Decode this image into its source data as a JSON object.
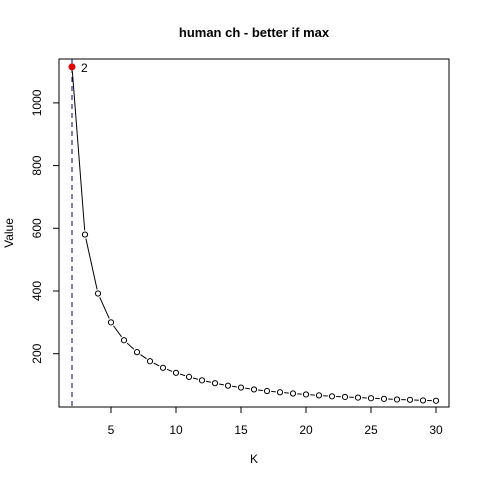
{
  "chart_data": {
    "type": "line",
    "title": "human ch - better if  max",
    "xlabel": "K",
    "ylabel": "Value",
    "xlim": [
      1,
      31
    ],
    "ylim": [
      30,
      1140
    ],
    "x_ticks": [
      5,
      10,
      15,
      20,
      25,
      30
    ],
    "y_ticks": [
      200,
      400,
      600,
      800,
      1000
    ],
    "grid": false,
    "legend": "none",
    "series": [
      {
        "x": [
          2,
          3,
          4,
          5,
          6,
          7,
          8,
          9,
          10,
          11,
          12,
          13,
          14,
          15,
          16,
          17,
          18,
          19,
          20,
          21,
          22,
          23,
          24,
          25,
          26,
          27,
          28,
          29,
          30
        ],
        "values": [
          1115,
          580,
          392,
          300,
          243,
          205,
          176,
          155,
          139,
          126,
          115,
          106,
          98,
          92,
          86,
          81,
          77,
          73,
          70,
          67,
          64,
          62,
          60,
          58,
          56,
          54,
          53,
          51,
          50
        ]
      }
    ],
    "optimum": {
      "x": 2,
      "y": 1115,
      "label": "2",
      "color": "#e00000"
    },
    "vline": {
      "x": 2,
      "style": "dashed",
      "color": "#000080"
    },
    "colors": {
      "line": "#000000",
      "points": "#000000",
      "box": "#000000"
    }
  }
}
